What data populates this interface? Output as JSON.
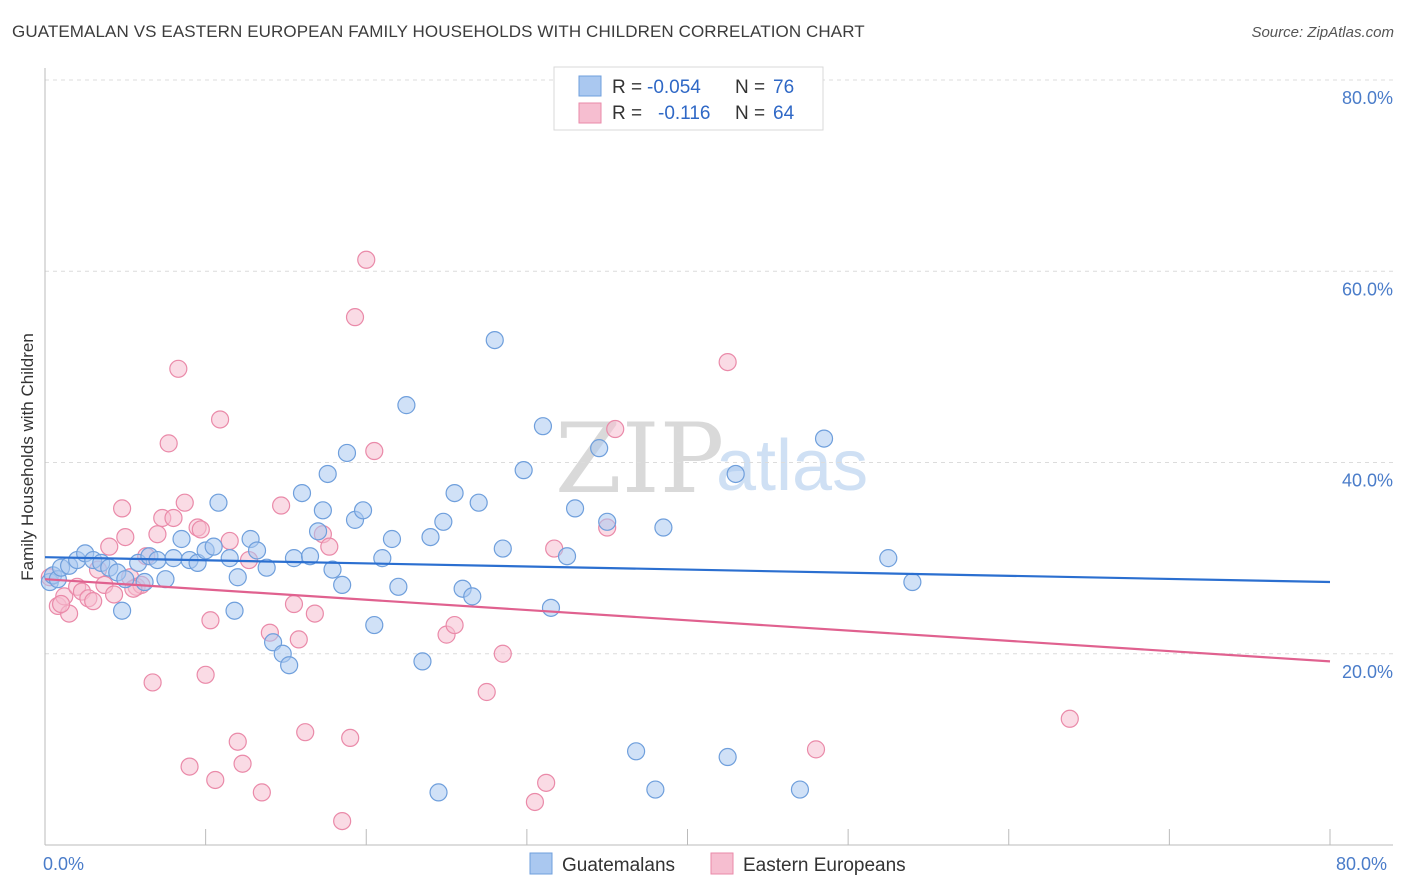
{
  "title": "GUATEMALAN VS EASTERN EUROPEAN FAMILY HOUSEHOLDS WITH CHILDREN CORRELATION CHART",
  "source": "Source: ZipAtlas.com",
  "watermark": {
    "zip": "ZIP",
    "atlas": "atlas"
  },
  "colors": {
    "blue_fill": "#aac8f0",
    "blue_stroke": "#6f9fdc",
    "blue_line": "#2b6fd0",
    "pink_fill": "#f6bed0",
    "pink_stroke": "#ea8aa9",
    "pink_line": "#e0618f",
    "tick_text": "#4a7cc9",
    "grid": "#dcdcdc"
  },
  "legend_top": {
    "rows": [
      {
        "r_label": "R =",
        "r_value": "-0.054",
        "n_label": "N =",
        "n_value": "76",
        "series": "blue"
      },
      {
        "r_label": "R =",
        "r_value": "-0.116",
        "n_label": "N =",
        "n_value": "64",
        "series": "pink"
      }
    ]
  },
  "legend_bottom": [
    {
      "label": "Guatemalans",
      "series": "blue"
    },
    {
      "label": "Eastern Europeans",
      "series": "pink"
    }
  ],
  "chart_data": {
    "type": "scatter",
    "title": "GUATEMALAN VS EASTERN EUROPEAN FAMILY HOUSEHOLDS WITH CHILDREN CORRELATION CHART",
    "xlabel": "",
    "ylabel": "Family Households with Children",
    "xlim": [
      0,
      80
    ],
    "ylim": [
      0,
      80
    ],
    "x_tick_labels": [
      "0.0%",
      "80.0%"
    ],
    "y_tick_labels": [
      "20.0%",
      "40.0%",
      "60.0%",
      "80.0%"
    ],
    "y_ticks": [
      20,
      40,
      60,
      80
    ],
    "series": [
      {
        "name": "Guatemalans",
        "color": "blue",
        "R": -0.054,
        "N": 76,
        "trend": {
          "x": [
            0,
            80
          ],
          "y": [
            30.1,
            27.5
          ]
        },
        "points": [
          [
            0.3,
            27.5
          ],
          [
            0.5,
            28.2
          ],
          [
            0.8,
            27.8
          ],
          [
            1.0,
            29.0
          ],
          [
            1.5,
            29.2
          ],
          [
            2.0,
            29.8
          ],
          [
            2.5,
            30.5
          ],
          [
            3.0,
            29.8
          ],
          [
            3.5,
            29.5
          ],
          [
            4.0,
            29.0
          ],
          [
            4.5,
            28.5
          ],
          [
            4.8,
            24.5
          ],
          [
            5.0,
            27.8
          ],
          [
            5.8,
            29.5
          ],
          [
            6.2,
            27.5
          ],
          [
            6.5,
            30.2
          ],
          [
            7.0,
            29.8
          ],
          [
            7.5,
            27.8
          ],
          [
            8.0,
            30.0
          ],
          [
            8.5,
            32.0
          ],
          [
            9.0,
            29.8
          ],
          [
            9.5,
            29.5
          ],
          [
            10.0,
            30.8
          ],
          [
            10.5,
            31.2
          ],
          [
            10.8,
            35.8
          ],
          [
            11.5,
            30.0
          ],
          [
            11.8,
            24.5
          ],
          [
            12.0,
            28.0
          ],
          [
            12.8,
            32.0
          ],
          [
            13.2,
            30.8
          ],
          [
            13.8,
            29.0
          ],
          [
            14.2,
            21.2
          ],
          [
            14.8,
            20.0
          ],
          [
            15.2,
            18.8
          ],
          [
            15.5,
            30.0
          ],
          [
            16.0,
            36.8
          ],
          [
            16.5,
            30.2
          ],
          [
            17.0,
            32.8
          ],
          [
            17.3,
            35.0
          ],
          [
            17.6,
            38.8
          ],
          [
            17.9,
            28.8
          ],
          [
            18.5,
            27.2
          ],
          [
            18.8,
            41.0
          ],
          [
            19.3,
            34.0
          ],
          [
            19.8,
            35.0
          ],
          [
            20.5,
            23.0
          ],
          [
            21.0,
            30.0
          ],
          [
            21.6,
            32.0
          ],
          [
            22.0,
            27.0
          ],
          [
            22.5,
            46.0
          ],
          [
            23.5,
            19.2
          ],
          [
            24.0,
            32.2
          ],
          [
            24.8,
            33.8
          ],
          [
            25.5,
            36.8
          ],
          [
            26.0,
            26.8
          ],
          [
            26.6,
            26.0
          ],
          [
            27.0,
            35.8
          ],
          [
            28.0,
            52.8
          ],
          [
            28.5,
            31.0
          ],
          [
            29.8,
            39.2
          ],
          [
            31.0,
            43.8
          ],
          [
            31.5,
            24.8
          ],
          [
            32.5,
            30.2
          ],
          [
            33.0,
            35.2
          ],
          [
            34.5,
            41.5
          ],
          [
            35.0,
            33.8
          ],
          [
            36.8,
            9.8
          ],
          [
            38.0,
            5.8
          ],
          [
            38.5,
            33.2
          ],
          [
            42.5,
            9.2
          ],
          [
            43.0,
            38.8
          ],
          [
            47.0,
            5.8
          ],
          [
            48.5,
            42.5
          ],
          [
            52.5,
            30.0
          ],
          [
            54.0,
            27.5
          ],
          [
            24.5,
            5.5
          ]
        ]
      },
      {
        "name": "Eastern Europeans",
        "color": "pink",
        "R": -0.116,
        "N": 64,
        "trend": {
          "x": [
            0,
            80
          ],
          "y": [
            27.8,
            19.2
          ]
        },
        "points": [
          [
            0.3,
            28.0
          ],
          [
            0.8,
            25.0
          ],
          [
            1.2,
            26.0
          ],
          [
            1.5,
            24.2
          ],
          [
            2.0,
            27.0
          ],
          [
            2.3,
            26.5
          ],
          [
            2.7,
            25.8
          ],
          [
            3.0,
            25.5
          ],
          [
            3.3,
            28.8
          ],
          [
            3.7,
            27.2
          ],
          [
            4.0,
            31.2
          ],
          [
            4.3,
            26.2
          ],
          [
            4.8,
            35.2
          ],
          [
            5.0,
            32.2
          ],
          [
            5.3,
            28.0
          ],
          [
            5.7,
            27.0
          ],
          [
            6.0,
            27.2
          ],
          [
            6.3,
            30.2
          ],
          [
            6.7,
            17.0
          ],
          [
            7.0,
            32.5
          ],
          [
            7.3,
            34.2
          ],
          [
            7.7,
            42.0
          ],
          [
            8.0,
            34.2
          ],
          [
            8.3,
            49.8
          ],
          [
            8.7,
            35.8
          ],
          [
            9.0,
            8.2
          ],
          [
            9.5,
            33.2
          ],
          [
            9.7,
            33.0
          ],
          [
            10.0,
            17.8
          ],
          [
            10.3,
            23.5
          ],
          [
            10.6,
            6.8
          ],
          [
            10.9,
            44.5
          ],
          [
            11.5,
            31.8
          ],
          [
            12.0,
            10.8
          ],
          [
            12.3,
            8.5
          ],
          [
            12.7,
            29.8
          ],
          [
            13.5,
            5.5
          ],
          [
            14.0,
            22.2
          ],
          [
            14.7,
            35.5
          ],
          [
            15.5,
            25.2
          ],
          [
            15.8,
            21.5
          ],
          [
            16.2,
            11.8
          ],
          [
            16.8,
            24.2
          ],
          [
            17.3,
            32.5
          ],
          [
            17.7,
            31.2
          ],
          [
            18.5,
            2.5
          ],
          [
            19.0,
            11.2
          ],
          [
            19.3,
            55.2
          ],
          [
            20.0,
            61.2
          ],
          [
            20.5,
            41.2
          ],
          [
            25.0,
            22.0
          ],
          [
            25.5,
            23.0
          ],
          [
            27.5,
            16.0
          ],
          [
            28.5,
            20.0
          ],
          [
            30.5,
            4.5
          ],
          [
            31.2,
            6.5
          ],
          [
            31.7,
            31.0
          ],
          [
            35.0,
            33.2
          ],
          [
            35.5,
            43.5
          ],
          [
            42.5,
            50.5
          ],
          [
            48.0,
            10.0
          ],
          [
            63.8,
            13.2
          ],
          [
            1.0,
            25.2
          ],
          [
            5.5,
            26.8
          ]
        ]
      }
    ]
  }
}
